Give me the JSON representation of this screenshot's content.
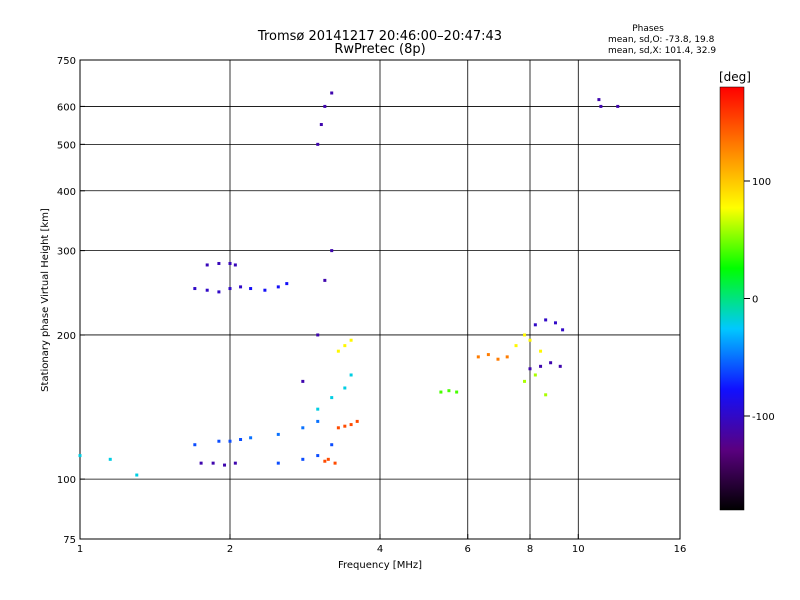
{
  "chart_data": {
    "type": "scatter",
    "title": "Tromsø 20141217 20:46:00–20:47:43",
    "subtitle": "RwPretec (8p)",
    "stats_header": "Phases",
    "stats_lines": [
      "mean, sd,O: -73.8, 19.8",
      "mean, sd,X: 101.4, 32.9"
    ],
    "xlabel": "Frequency [MHz]",
    "ylabel": "Stationary phase Virtual Height [km]",
    "xscale": "log",
    "yscale": "log",
    "xlim": [
      1,
      16
    ],
    "ylim": [
      75,
      750
    ],
    "x_ticks": [
      1,
      2,
      4,
      6,
      8,
      10,
      16
    ],
    "y_ticks": [
      75,
      100,
      200,
      300,
      400,
      500,
      600,
      750
    ],
    "x_grid": [
      2,
      4,
      6,
      8,
      10
    ],
    "y_grid": [
      100,
      200,
      300,
      400,
      500,
      600
    ],
    "grid": true,
    "colorbar": {
      "label": "[deg]",
      "range": [
        -180,
        180
      ],
      "ticks": [
        100,
        0,
        -100
      ],
      "colors": [
        "#000000",
        "#5a0080",
        "#1010ff",
        "#00c8ff",
        "#00ff00",
        "#ffff00",
        "#ff8000",
        "#ff0000"
      ]
    },
    "series": [
      {
        "x": [
          1.0,
          1.15,
          1.3
        ],
        "y": [
          112,
          110,
          102
        ],
        "phase": -20
      },
      {
        "x": [
          1.7,
          1.9,
          2.0,
          2.1
        ],
        "y": [
          118,
          120,
          120,
          121
        ],
        "phase": -60
      },
      {
        "x": [
          1.75,
          1.85,
          1.95,
          2.05
        ],
        "y": [
          108,
          108,
          107,
          108
        ],
        "phase": -110
      },
      {
        "x": [
          1.7,
          1.8,
          1.9,
          2.0,
          2.1
        ],
        "y": [
          250,
          248,
          246,
          250,
          252
        ],
        "phase": -100
      },
      {
        "x": [
          1.8,
          1.9,
          2.0,
          2.05
        ],
        "y": [
          280,
          282,
          282,
          280
        ],
        "phase": -105
      },
      {
        "x": [
          2.2,
          2.35,
          2.5,
          2.6
        ],
        "y": [
          250,
          248,
          252,
          256
        ],
        "phase": -80
      },
      {
        "x": [
          2.2,
          2.5,
          2.8,
          3.0
        ],
        "y": [
          122,
          124,
          128,
          132
        ],
        "phase": -50
      },
      {
        "x": [
          2.5,
          2.8,
          3.0,
          3.2
        ],
        "y": [
          108,
          110,
          112,
          118
        ],
        "phase": -60
      },
      {
        "x": [
          2.8,
          3.0,
          3.1,
          3.2
        ],
        "y": [
          160,
          200,
          260,
          300
        ],
        "phase": -110
      },
      {
        "x": [
          3.0,
          3.05,
          3.1,
          3.2
        ],
        "y": [
          500,
          550,
          600,
          640
        ],
        "phase": -110
      },
      {
        "x": [
          3.0,
          3.2,
          3.4,
          3.5
        ],
        "y": [
          140,
          148,
          155,
          165
        ],
        "phase": -20
      },
      {
        "x": [
          3.3,
          3.4,
          3.5,
          3.6
        ],
        "y": [
          128,
          129,
          130,
          132
        ],
        "phase": 150
      },
      {
        "x": [
          3.1,
          3.15,
          3.25
        ],
        "y": [
          109,
          110,
          108
        ],
        "phase": 150
      },
      {
        "x": [
          3.3,
          3.4,
          3.5
        ],
        "y": [
          185,
          190,
          195
        ],
        "phase": 80
      },
      {
        "x": [
          5.3,
          5.5,
          5.7
        ],
        "y": [
          152,
          153,
          152
        ],
        "phase": 40
      },
      {
        "x": [
          6.3,
          6.6,
          6.9,
          7.2
        ],
        "y": [
          180,
          182,
          178,
          180
        ],
        "phase": 130
      },
      {
        "x": [
          7.5,
          7.8,
          8.0,
          8.4
        ],
        "y": [
          190,
          200,
          195,
          185
        ],
        "phase": 80
      },
      {
        "x": [
          8.0,
          8.4,
          8.8,
          9.2
        ],
        "y": [
          170,
          172,
          175,
          172
        ],
        "phase": -110
      },
      {
        "x": [
          8.2,
          8.6,
          9.0,
          9.3
        ],
        "y": [
          210,
          215,
          212,
          205
        ],
        "phase": -100
      },
      {
        "x": [
          7.8,
          8.2,
          8.6
        ],
        "y": [
          160,
          165,
          150
        ],
        "phase": 60
      },
      {
        "x": [
          11.0,
          11.1,
          12.0
        ],
        "y": [
          620,
          600,
          600
        ],
        "phase": -110
      }
    ]
  }
}
